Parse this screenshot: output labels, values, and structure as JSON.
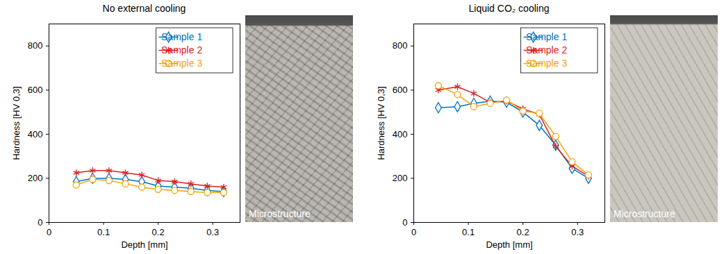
{
  "chart_data": [
    {
      "type": "line",
      "title": "No external cooling",
      "x_label": "Depth [mm]",
      "y_label": "Hardness [HV 0,3]",
      "x": [
        0.05,
        0.08,
        0.11,
        0.14,
        0.17,
        0.2,
        0.23,
        0.26,
        0.29,
        0.32
      ],
      "series": [
        {
          "name": "Sample 1",
          "color": "#0072bd",
          "marker": "diamond",
          "values": [
            185,
            200,
            200,
            195,
            185,
            165,
            160,
            155,
            145,
            140
          ]
        },
        {
          "name": "Sample 2",
          "color": "#d91e1e",
          "marker": "asterisk",
          "values": [
            225,
            235,
            235,
            225,
            215,
            190,
            185,
            175,
            165,
            160
          ]
        },
        {
          "name": "Sample 3",
          "color": "#f0a30a",
          "marker": "circle",
          "values": [
            170,
            195,
            190,
            175,
            160,
            150,
            145,
            140,
            135,
            135
          ]
        }
      ],
      "xlim": [
        0,
        0.35
      ],
      "xticks": [
        0,
        0.1,
        0.2,
        0.3
      ],
      "ylim": [
        0,
        900
      ],
      "yticks": [
        0,
        200,
        400,
        600,
        800
      ],
      "legend": "top right",
      "grid": false,
      "annotations": [
        "Microstructure"
      ]
    },
    {
      "type": "line",
      "title": "Liquid CO₂ cooling",
      "x_label": "Depth [mm]",
      "y_label": "Hardness [HV 0,3]",
      "x": [
        0.045,
        0.08,
        0.11,
        0.14,
        0.17,
        0.2,
        0.23,
        0.26,
        0.29,
        0.32
      ],
      "series": [
        {
          "name": "Sample 1",
          "color": "#0072bd",
          "marker": "diamond",
          "values": [
            520,
            525,
            540,
            550,
            545,
            500,
            440,
            350,
            245,
            200
          ]
        },
        {
          "name": "Sample 2",
          "color": "#d91e1e",
          "marker": "asterisk",
          "values": [
            600,
            615,
            585,
            545,
            550,
            515,
            490,
            345,
            255,
            210
          ]
        },
        {
          "name": "Sample 3",
          "color": "#f0a30a",
          "marker": "circle",
          "values": [
            620,
            580,
            525,
            540,
            555,
            505,
            495,
            390,
            275,
            215
          ]
        }
      ],
      "xlim": [
        0,
        0.35
      ],
      "xticks": [
        0,
        0.1,
        0.2,
        0.3
      ],
      "ylim": [
        0,
        900
      ],
      "yticks": [
        0,
        200,
        400,
        600,
        800
      ],
      "legend": "top right",
      "grid": false,
      "annotations": [
        "Microstructure"
      ]
    }
  ]
}
